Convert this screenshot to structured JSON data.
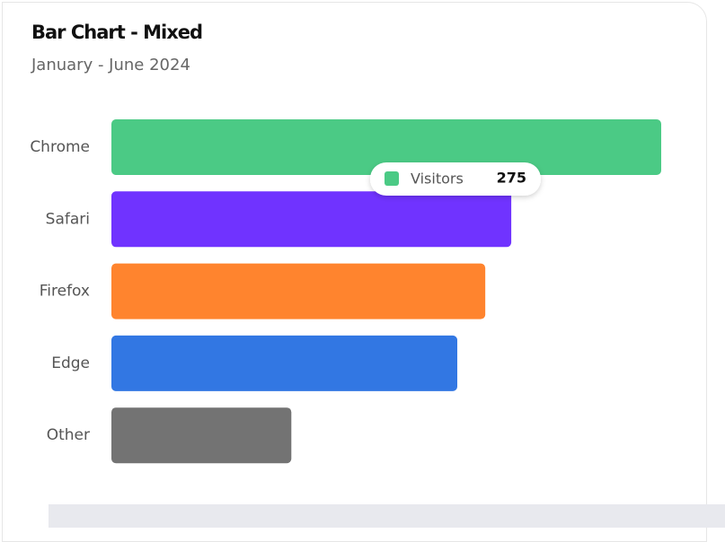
{
  "chart_data": {
    "type": "bar",
    "orientation": "horizontal",
    "title": "Bar Chart - Mixed",
    "subtitle": "January - June 2024",
    "categories": [
      "Chrome",
      "Safari",
      "Firefox",
      "Edge",
      "Other"
    ],
    "series": [
      {
        "name": "Visitors",
        "values": [
          275,
          200,
          187,
          173,
          90
        ],
        "colors": [
          "#4bca85",
          "#7033ff",
          "#ff842e",
          "#3277e3",
          "#737373"
        ]
      }
    ]
  }
}
